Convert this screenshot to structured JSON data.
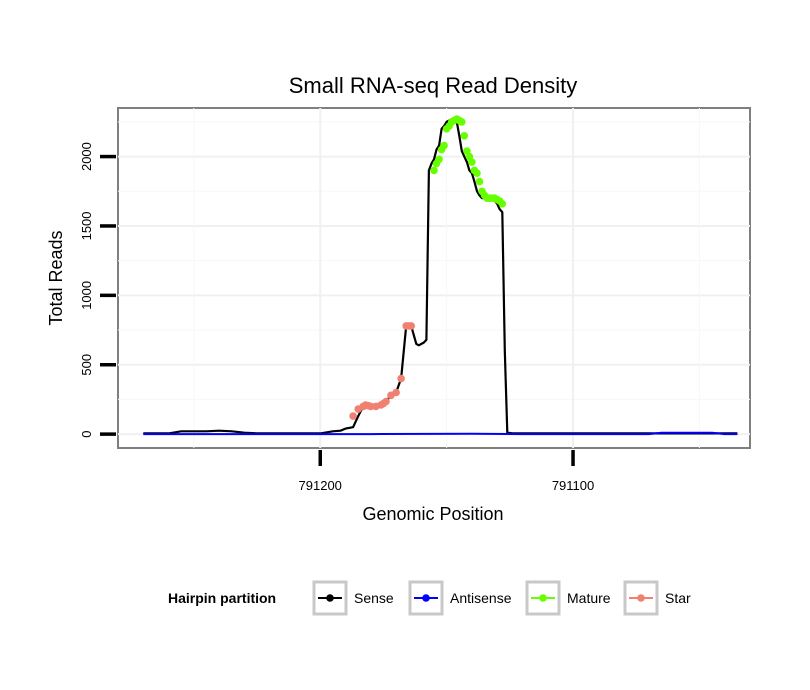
{
  "chart_data": {
    "type": "line",
    "title": "Small RNA-seq Read Density",
    "xlabel": "Genomic Position",
    "ylabel": "Total Reads",
    "x_reversed": true,
    "xlim": [
      791280,
      791030
    ],
    "ylim": [
      -100,
      2350
    ],
    "x_ticks": [
      791200,
      791100
    ],
    "x_tick_labels": [
      "791200",
      "791100"
    ],
    "y_ticks": [
      0,
      500,
      1000,
      1500,
      2000
    ],
    "y_tick_labels": [
      "0",
      "500",
      "1000",
      "1500",
      "2000"
    ],
    "legend": {
      "title": "Hairpin partition",
      "position": "bottom",
      "entries": [
        "Sense",
        "Antisense",
        "Mature",
        "Star"
      ]
    },
    "colors": {
      "Sense": "#000000",
      "Antisense": "#0000ff",
      "Mature": "#66ff00",
      "Star": "#f08070"
    },
    "series": [
      {
        "name": "Sense",
        "x": [
          791270,
          791260,
          791255,
          791250,
          791245,
          791240,
          791235,
          791230,
          791225,
          791220,
          791215,
          791210,
          791205,
          791200,
          791195,
          791192,
          791190,
          791187,
          791185,
          791183,
          791182,
          791181,
          791180,
          791178,
          791176,
          791175,
          791174,
          791172,
          791170,
          791168,
          791166,
          791165,
          791164,
          791162,
          791161,
          791160,
          791159,
          791158,
          791157,
          791156,
          791155,
          791154,
          791153,
          791152,
          791151,
          791150,
          791149,
          791148,
          791147,
          791146,
          791145,
          791144,
          791143,
          791142,
          791141,
          791140,
          791139,
          791138,
          791137,
          791136,
          791135,
          791134,
          791133,
          791132,
          791131,
          791130,
          791129,
          791128,
          791127,
          791126,
          791124,
          791122,
          791121,
          791120,
          791100,
          791080,
          791060,
          791040,
          791035
        ],
        "y": [
          5,
          5,
          20,
          20,
          20,
          25,
          20,
          10,
          5,
          5,
          5,
          5,
          5,
          5,
          20,
          25,
          40,
          50,
          130,
          200,
          210,
          205,
          200,
          200,
          210,
          220,
          235,
          280,
          300,
          400,
          780,
          780,
          780,
          650,
          640,
          650,
          660,
          680,
          1900,
          1950,
          1980,
          2050,
          2080,
          2200,
          2220,
          2250,
          2260,
          2270,
          2260,
          2250,
          2150,
          2040,
          2000,
          1960,
          1900,
          1880,
          1820,
          1750,
          1720,
          1700,
          1700,
          1700,
          1700,
          1690,
          1680,
          1660,
          1620,
          1600,
          600,
          10,
          5,
          5,
          5,
          5,
          5,
          5,
          5,
          5,
          5
        ]
      },
      {
        "name": "Antisense",
        "x": [
          791270,
          791220,
          791180,
          791140,
          791120,
          791100,
          791070,
          791065,
          791055,
          791045,
          791040,
          791035
        ],
        "y": [
          0,
          0,
          0,
          3,
          0,
          0,
          0,
          10,
          10,
          10,
          0,
          0
        ]
      },
      {
        "name": "Mature",
        "x": [
          791155,
          791154,
          791153,
          791152,
          791151,
          791150,
          791149,
          791148,
          791147,
          791146,
          791145,
          791144,
          791143,
          791142,
          791141,
          791140,
          791139,
          791138,
          791137,
          791136,
          791135,
          791134,
          791133,
          791132,
          791131,
          791130,
          791129,
          791128
        ],
        "y": [
          1900,
          1950,
          1980,
          2050,
          2080,
          2200,
          2220,
          2250,
          2260,
          2270,
          2260,
          2250,
          2150,
          2040,
          2000,
          1960,
          1900,
          1880,
          1820,
          1750,
          1720,
          1700,
          1700,
          1700,
          1700,
          1690,
          1680,
          1660
        ]
      },
      {
        "name": "Star",
        "x": [
          791187,
          791185,
          791183,
          791182,
          791181,
          791180,
          791178,
          791176,
          791175,
          791174,
          791172,
          791170,
          791168,
          791166,
          791165,
          791164
        ],
        "y": [
          130,
          180,
          200,
          210,
          205,
          200,
          200,
          210,
          220,
          235,
          280,
          300,
          400,
          780,
          780,
          780
        ]
      }
    ]
  }
}
